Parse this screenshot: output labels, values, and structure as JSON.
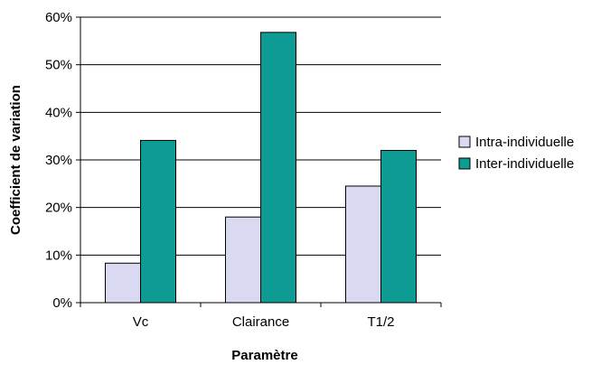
{
  "chart_data": {
    "type": "bar",
    "categories": [
      "Vc",
      "Clairance",
      "T1/2"
    ],
    "series": [
      {
        "name": "Intra-individuelle",
        "values": [
          8.3,
          18.0,
          24.5
        ],
        "color": "#d9d9f2"
      },
      {
        "name": "Inter-individuelle",
        "values": [
          34.1,
          56.8,
          32.0
        ],
        "color": "#0e9b94"
      }
    ],
    "xlabel": "Paramètre",
    "ylabel": "Coefficient de variation",
    "ylim": [
      0,
      60
    ],
    "ytick_values": [
      0,
      10,
      20,
      30,
      40,
      50,
      60
    ],
    "yticks": [
      "0%",
      "10%",
      "20%",
      "30%",
      "40%",
      "50%",
      "60%"
    ],
    "grid": "y-major",
    "legend_position": "right"
  }
}
